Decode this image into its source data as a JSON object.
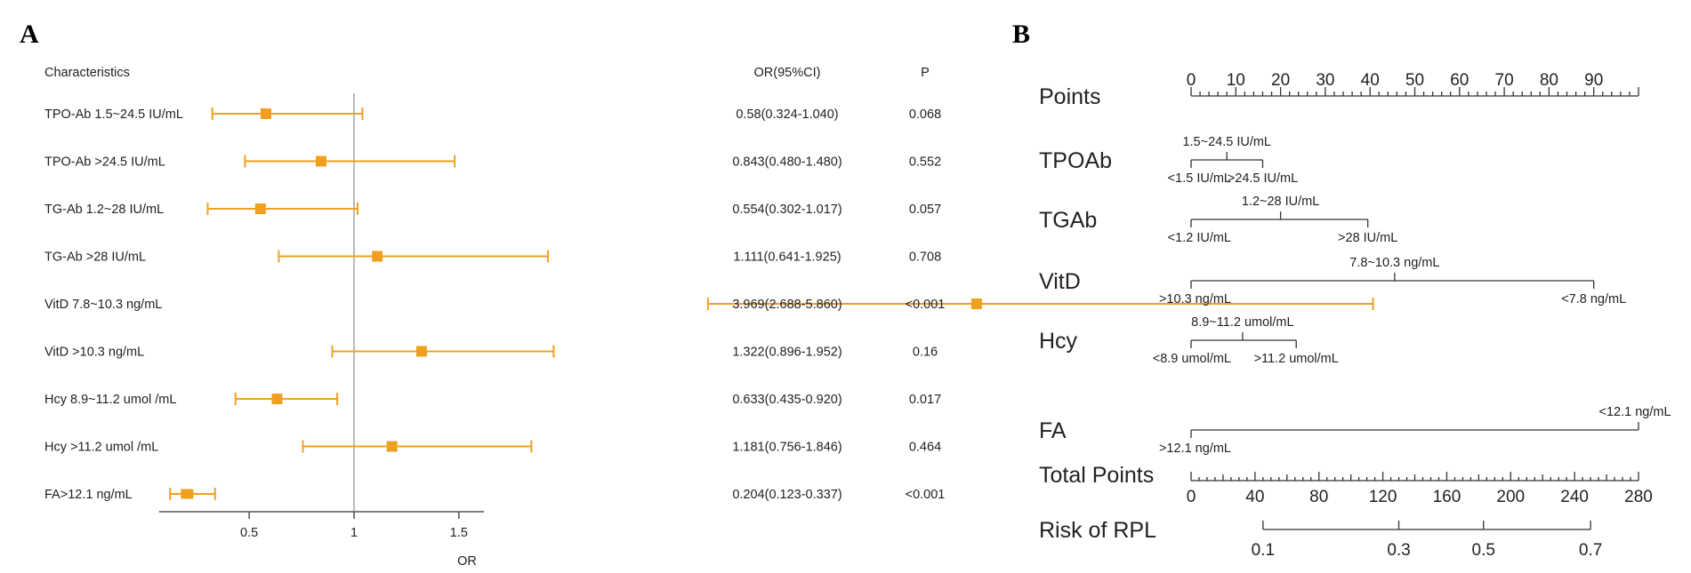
{
  "panels": {
    "a": "A",
    "b": "B"
  },
  "colors": {
    "marker": "#f0a020",
    "refline": "#aaaaaa",
    "axis": "#333333"
  },
  "chart_data": [
    {
      "type": "forest",
      "headers": {
        "characteristics": "Characteristics",
        "or": "OR(95%CI)",
        "p": "P"
      },
      "xlabel": "OR",
      "xticks": [
        0.5,
        1,
        1.5
      ],
      "xtick_labels": [
        "0.5",
        "1",
        "1.5"
      ],
      "xlim": [
        0.07,
        1.62
      ],
      "reference": 1,
      "rows": [
        {
          "label": "TPO-Ab 1.5~24.5 IU/mL",
          "or": 0.58,
          "lo": 0.324,
          "hi": 1.04,
          "or_text": "0.58(0.324-1.040)",
          "p": "0.068"
        },
        {
          "label": "TPO-Ab >24.5 IU/mL",
          "or": 0.843,
          "lo": 0.48,
          "hi": 1.48,
          "or_text": "0.843(0.480-1.480)",
          "p": "0.552"
        },
        {
          "label": "TG-Ab 1.2~28 IU/mL",
          "or": 0.554,
          "lo": 0.302,
          "hi": 1.017,
          "or_text": "0.554(0.302-1.017)",
          "p": "0.057"
        },
        {
          "label": "TG-Ab >28 IU/mL",
          "or": 1.111,
          "lo": 0.641,
          "hi": 1.925,
          "or_text": "1.111(0.641-1.925)",
          "p": "0.708"
        },
        {
          "label": "VitD 7.8~10.3 ng/mL",
          "or": 3.969,
          "lo": 2.688,
          "hi": 5.86,
          "or_text": "3.969(2.688-5.860)",
          "p": "<0.001"
        },
        {
          "label": "VitD >10.3 ng/mL",
          "or": 1.322,
          "lo": 0.896,
          "hi": 1.952,
          "or_text": "1.322(0.896-1.952)",
          "p": "0.16"
        },
        {
          "label": "Hcy 8.9~11.2 umol /mL",
          "or": 0.633,
          "lo": 0.435,
          "hi": 0.92,
          "or_text": "0.633(0.435-0.920)",
          "p": "0.017"
        },
        {
          "label": "Hcy >11.2 umol /mL",
          "or": 1.181,
          "lo": 0.756,
          "hi": 1.846,
          "or_text": "1.181(0.756-1.846)",
          "p": "0.464"
        },
        {
          "label": "FA>12.1 ng/mL",
          "or": 0.204,
          "lo": 0.123,
          "hi": 0.337,
          "or_text": "0.204(0.123-0.337)",
          "p": "<0.001"
        }
      ]
    },
    {
      "type": "nomogram",
      "points_axis": {
        "label": "Points",
        "range": [
          0,
          100
        ],
        "tick_labels": [
          0,
          10,
          20,
          30,
          40,
          50,
          60,
          70,
          80,
          90
        ]
      },
      "variables": [
        {
          "name": "TPOAb",
          "line": [
            0,
            16
          ],
          "levels": [
            {
              "label": "<1.5 IU/mL",
              "points": 0,
              "pos": "below"
            },
            {
              "label": "1.5~24.5 IU/mL",
              "points": 8,
              "pos": "above"
            },
            {
              "label": ">24.5 IU/mL",
              "points": 16,
              "pos": "below"
            }
          ]
        },
        {
          "name": "TGAb",
          "line": [
            0,
            39.5
          ],
          "levels": [
            {
              "label": "<1.2 IU/mL",
              "points": 0,
              "pos": "below"
            },
            {
              "label": "1.2~28 IU/mL",
              "points": 20,
              "pos": "above"
            },
            {
              "label": ">28 IU/mL",
              "points": 39.5,
              "pos": "below"
            }
          ]
        },
        {
          "name": "VitD",
          "line": [
            0,
            90
          ],
          "levels": [
            {
              "label": ">10.3 ng/mL",
              "points": 0,
              "pos": "below"
            },
            {
              "label": "7.8~10.3 ng/mL",
              "points": 45.5,
              "pos": "above"
            },
            {
              "label": "<7.8 ng/mL",
              "points": 90,
              "pos": "below"
            }
          ]
        },
        {
          "name": "Hcy",
          "line": [
            0,
            23.5
          ],
          "levels": [
            {
              "label": "<8.9 umol/mL",
              "points": 0,
              "pos": "below"
            },
            {
              "label": "8.9~11.2 umol/mL",
              "points": 11.5,
              "pos": "above"
            },
            {
              "label": ">11.2 umol/mL",
              "points": 23.5,
              "pos": "below"
            }
          ]
        },
        {
          "name": "FA",
          "line": [
            0,
            100
          ],
          "levels": [
            {
              "label": ">12.1 ng/mL",
              "points": 0,
              "pos": "below"
            },
            {
              "label": "<12.1 ng/mL",
              "points": 100,
              "pos": "above"
            }
          ]
        }
      ],
      "total_points": {
        "label": "Total Points",
        "range": [
          0,
          280
        ],
        "tick_labels": [
          0,
          40,
          80,
          120,
          160,
          200,
          240,
          280
        ]
      },
      "risk": {
        "label": "Risk of RPL",
        "tick_labels": [
          "0.1",
          "0.3",
          "0.5",
          "0.7"
        ],
        "total_points_at_ticks": [
          45,
          130,
          183,
          250
        ]
      }
    }
  ]
}
